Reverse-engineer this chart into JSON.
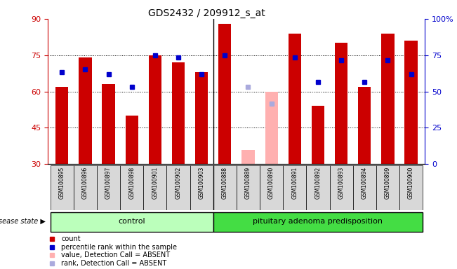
{
  "title": "GDS2432 / 209912_s_at",
  "samples": [
    "GSM100895",
    "GSM100896",
    "GSM100897",
    "GSM100898",
    "GSM100901",
    "GSM100902",
    "GSM100903",
    "GSM100888",
    "GSM100889",
    "GSM100890",
    "GSM100891",
    "GSM100892",
    "GSM100893",
    "GSM100894",
    "GSM100899",
    "GSM100900"
  ],
  "red_values": [
    62,
    74,
    63,
    50,
    75,
    72,
    68,
    88,
    null,
    null,
    84,
    54,
    80,
    62,
    84,
    81
  ],
  "blue_values": [
    68,
    69,
    67,
    62,
    75,
    74,
    67,
    75,
    null,
    null,
    74,
    64,
    73,
    64,
    73,
    67
  ],
  "pink_values": [
    null,
    null,
    null,
    null,
    null,
    null,
    null,
    null,
    36,
    60,
    null,
    null,
    null,
    null,
    null,
    null
  ],
  "lilac_values": [
    null,
    null,
    null,
    null,
    null,
    null,
    null,
    null,
    62,
    55,
    null,
    null,
    null,
    null,
    null,
    null
  ],
  "absent_mask": [
    false,
    false,
    false,
    false,
    false,
    false,
    false,
    false,
    true,
    true,
    false,
    false,
    false,
    false,
    false,
    false
  ],
  "control_count": 7,
  "disease_count": 9,
  "ylim_left": [
    30,
    90
  ],
  "ylim_right": [
    0,
    100
  ],
  "yticks_left": [
    30,
    45,
    60,
    75,
    90
  ],
  "yticks_right": [
    0,
    25,
    50,
    75,
    100
  ],
  "bar_color": "#cc0000",
  "blue_color": "#0000cc",
  "pink_color": "#ffb0b0",
  "lilac_color": "#aaaadd",
  "control_color": "#bbffbb",
  "disease_color": "#44dd44",
  "axis_label_color_left": "#cc0000",
  "axis_label_color_right": "#0000cc",
  "bar_width": 0.55,
  "marker_size": 5,
  "hgrid_vals": [
    45,
    60,
    75
  ],
  "separator_idx": 7
}
